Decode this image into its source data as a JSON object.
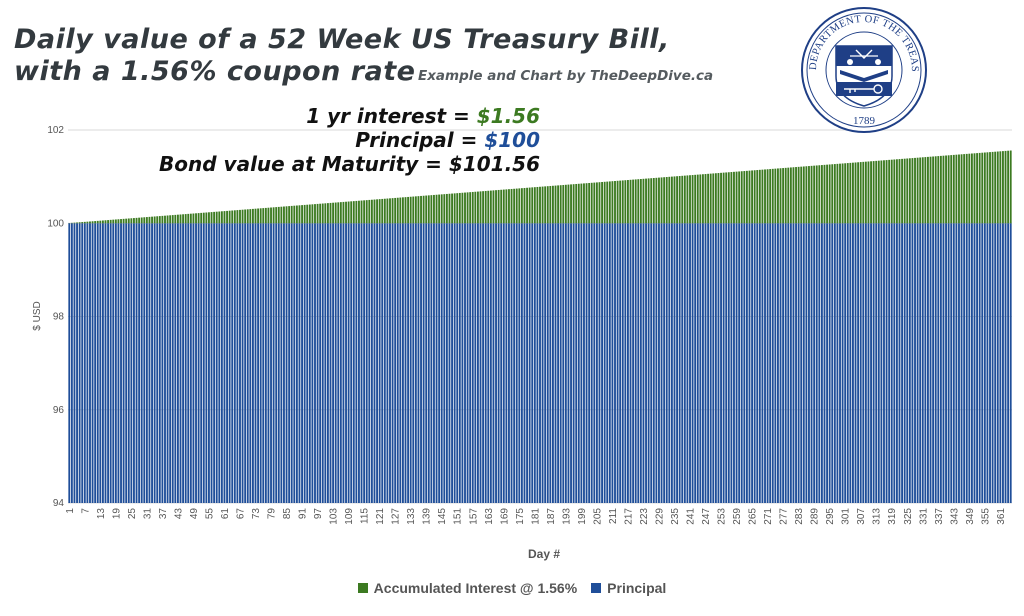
{
  "title": {
    "line1": "Daily value of a 52 Week US Treasury Bill,",
    "line2": "with a 1.56% coupon rate"
  },
  "credit": "Example and Chart by TheDeepDive.ca",
  "annotations": [
    {
      "label": "1 yr interest = ",
      "value": "$1.56",
      "color": "#3c7a21"
    },
    {
      "label": "Principal = ",
      "value": "$100",
      "color": "#1f4e99"
    },
    {
      "label": "Bond value at Maturity = $101.56",
      "value": "",
      "color": "#111111"
    }
  ],
  "seal": {
    "text": "THE DEPARTMENT OF THE TREASURY",
    "year": "1789",
    "color": "#1f3f86"
  },
  "chart_data": {
    "type": "bar",
    "stacked": true,
    "x": {
      "start": 1,
      "end": 365,
      "step": 1
    },
    "xlabel": "Day #",
    "ylabel": "$ USD",
    "ylim": [
      94,
      102
    ],
    "yticks": [
      94,
      96,
      98,
      100,
      102
    ],
    "xtick_labels": [
      "1",
      "7",
      "13",
      "19",
      "25",
      "31",
      "37",
      "43",
      "49",
      "55",
      "61",
      "67",
      "73",
      "79",
      "85",
      "91",
      "97",
      "103",
      "109",
      "115",
      "121",
      "127",
      "133",
      "139",
      "145",
      "151",
      "157",
      "163",
      "169",
      "175",
      "181",
      "187",
      "193",
      "199",
      "205",
      "211",
      "217",
      "223",
      "229",
      "235",
      "241",
      "247",
      "253",
      "259",
      "265",
      "271",
      "277",
      "283",
      "289",
      "295",
      "301",
      "307",
      "313",
      "319",
      "325",
      "331",
      "337",
      "343",
      "349",
      "355",
      "361"
    ],
    "series": [
      {
        "name": "Principal",
        "color": "#1f4e99",
        "value_per_day": 100
      },
      {
        "name": "Accumulated Interest @ 1.56%",
        "color": "#3c7a21",
        "rate": 0.0156,
        "principal": 100,
        "days_in_year": 365
      }
    ],
    "legend_order": [
      "Accumulated Interest @ 1.56%",
      "Principal"
    ],
    "legend_position": "bottom",
    "grid": true
  }
}
